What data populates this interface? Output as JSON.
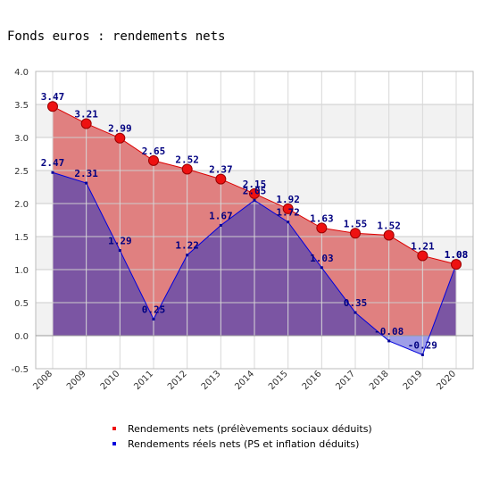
{
  "chart_data": {
    "type": "area",
    "title": "Fonds euros : rendements nets",
    "xlabel": "",
    "ylabel": "",
    "categories": [
      "2008",
      "2009",
      "2010",
      "2011",
      "2012",
      "2013",
      "2014",
      "2015",
      "2016",
      "2017",
      "2018",
      "2019",
      "2020"
    ],
    "ylim": [
      -0.5,
      4.0
    ],
    "yticks": [
      "-0.5",
      "0.0",
      "0.5",
      "1.0",
      "1.5",
      "2.0",
      "2.5",
      "3.0",
      "3.5",
      "4.0"
    ],
    "grid": true,
    "legend_position": "bottom",
    "series": [
      {
        "name": "Rendements nets (prélèvements sociaux déduits)",
        "values": [
          3.47,
          3.21,
          2.99,
          2.65,
          2.52,
          2.37,
          2.15,
          1.92,
          1.63,
          1.55,
          1.52,
          1.21,
          1.08
        ],
        "labels": [
          "3.47",
          "3.21",
          "2.99",
          "2.65",
          "2.52",
          "2.37",
          "2.15",
          "1.92",
          "1.63",
          "1.55",
          "1.52",
          "1.21",
          "1.08"
        ],
        "fill": "#e08080",
        "line": "#dd0000",
        "marker": "#ee1111"
      },
      {
        "name": "Rendements réels nets (PS et inflation déduits)",
        "values": [
          2.47,
          2.31,
          1.29,
          0.25,
          1.22,
          1.67,
          2.05,
          1.72,
          1.03,
          0.35,
          -0.08,
          -0.29,
          1.08
        ],
        "labels": [
          "2.47",
          "2.31",
          "1.29",
          "0.25",
          "1.22",
          "1.67",
          "2.05",
          "1.72",
          "1.03",
          "0.35",
          "-0.08",
          "-0.29",
          "1.08"
        ],
        "fill": "#7b55a3",
        "fill_negative": "#9e9ee8",
        "line": "#0000dd",
        "marker": "#000099"
      }
    ]
  }
}
